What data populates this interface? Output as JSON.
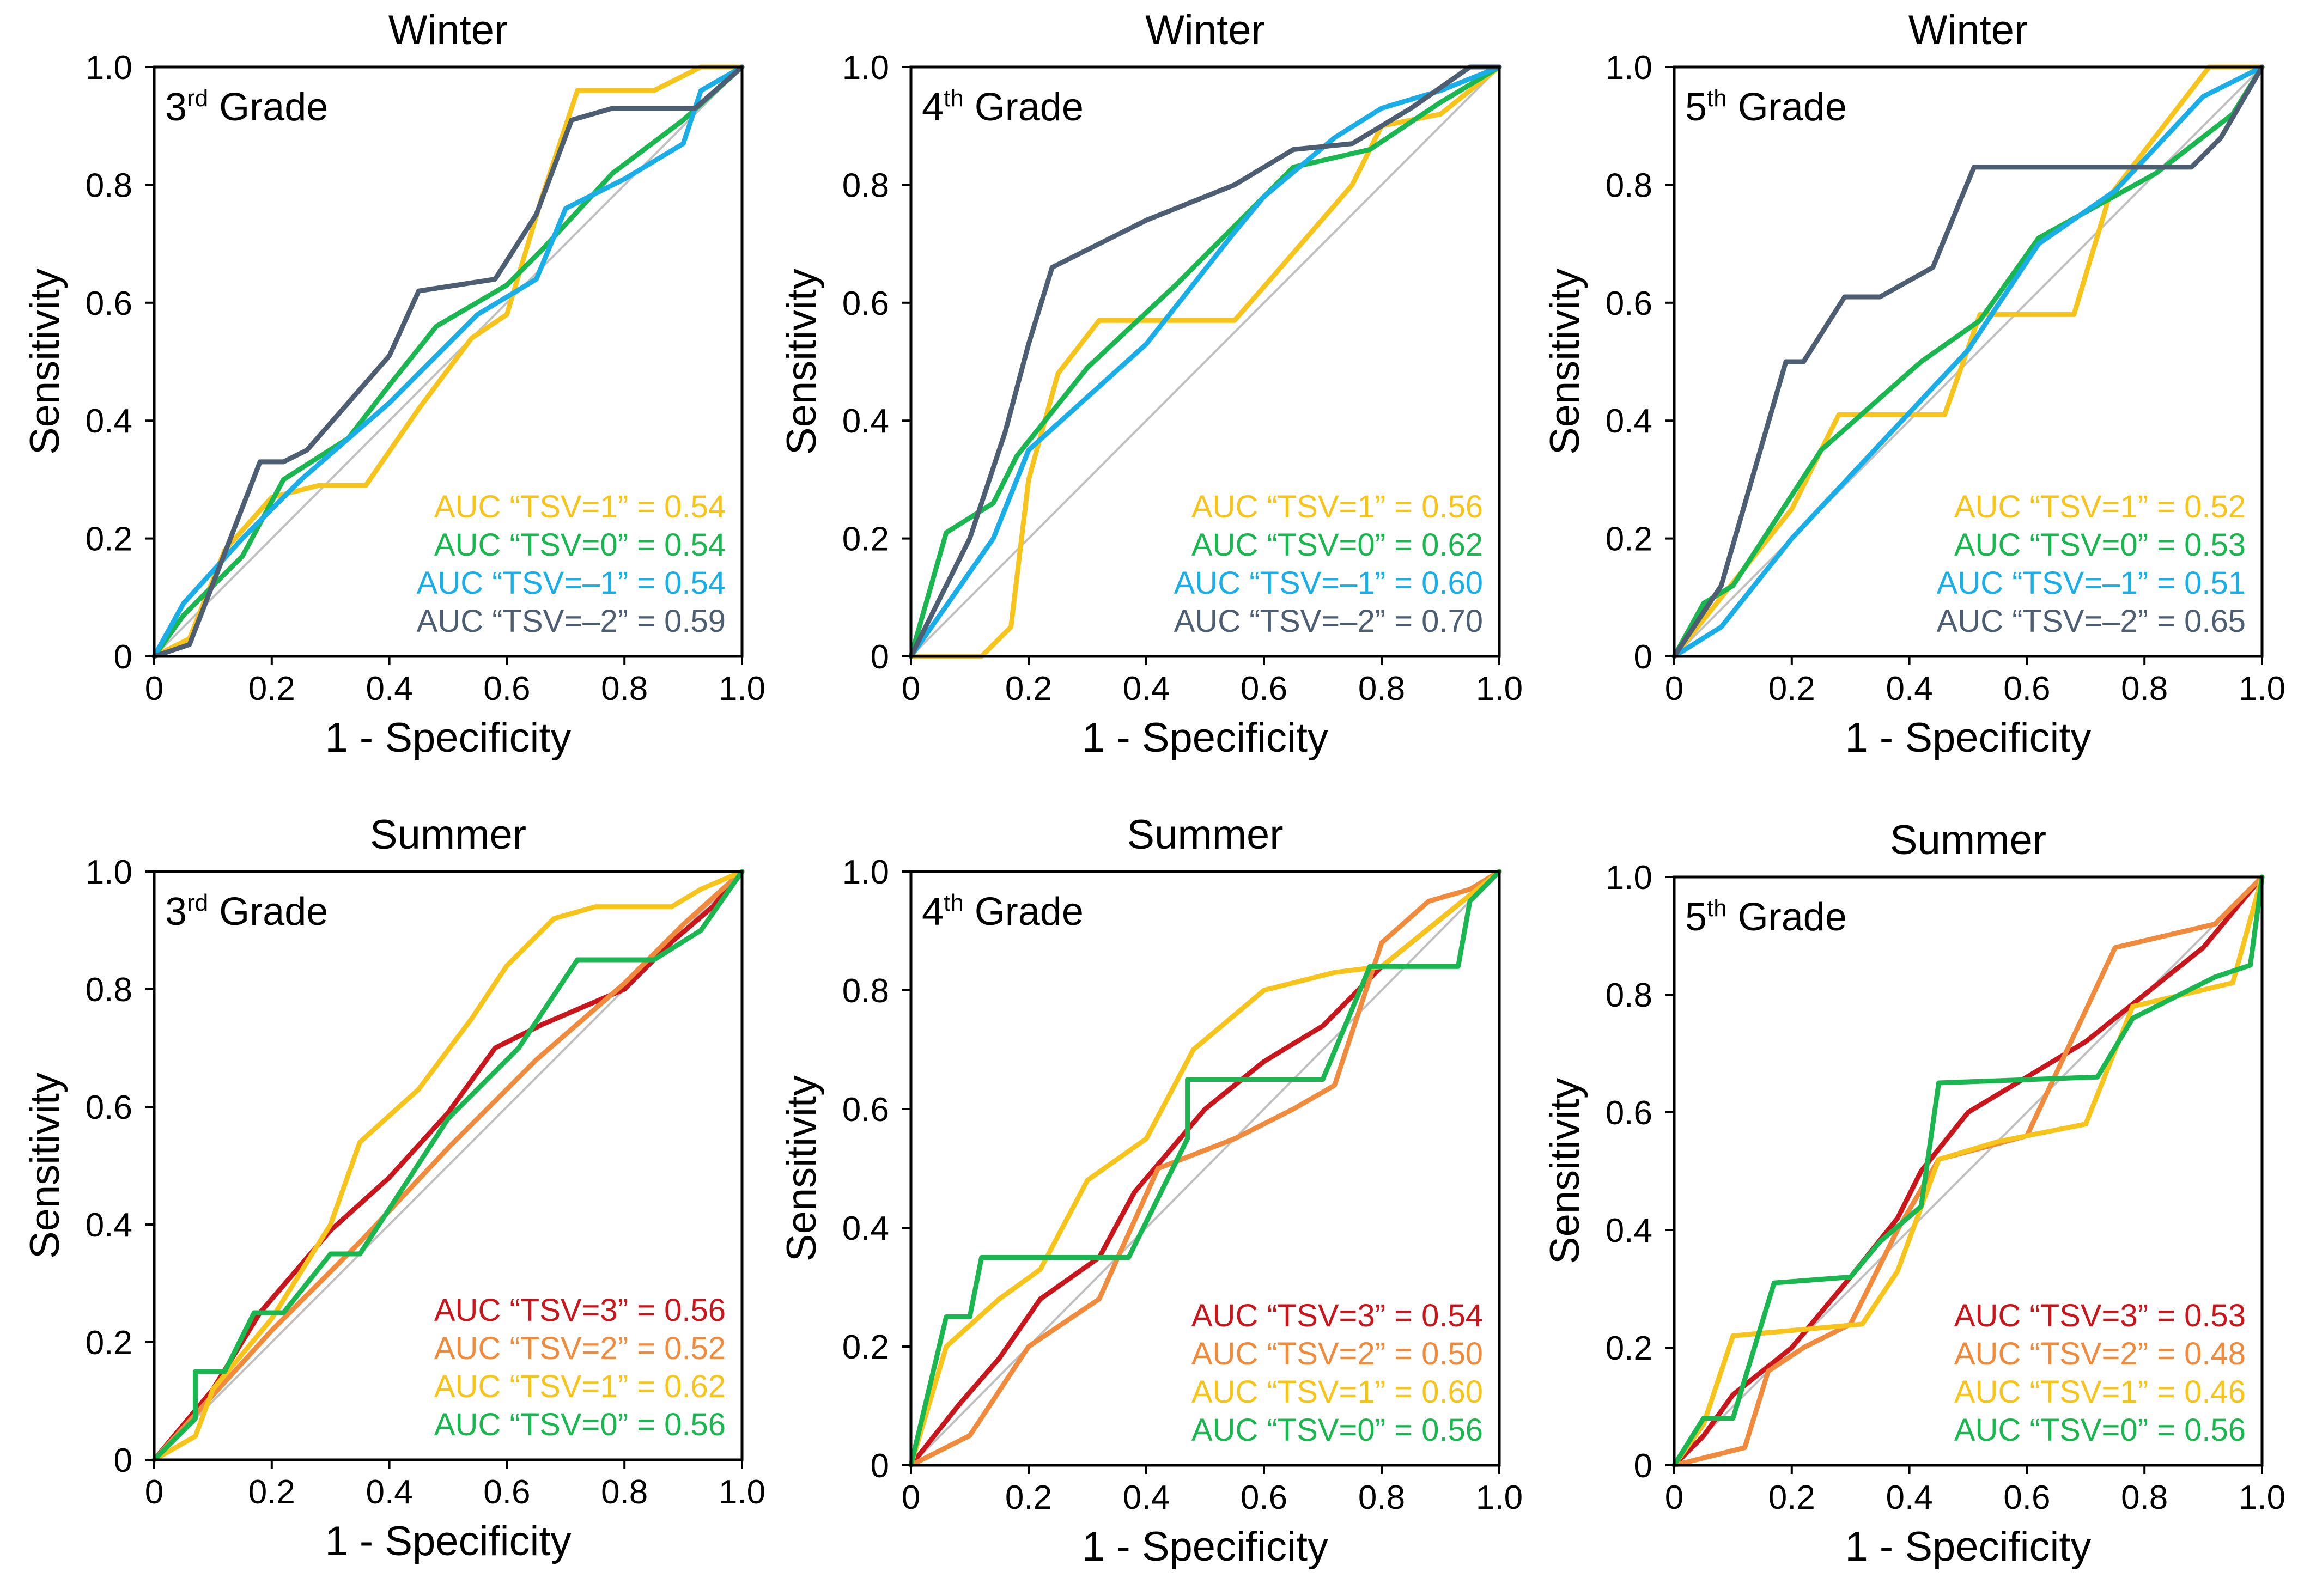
{
  "chart_data": [
    {
      "type": "line",
      "season": "Winter",
      "title": "Winter",
      "grade": "3",
      "grade_suffix": "rd",
      "grade_word": "Grade",
      "xlabel": "1 - Specificity",
      "ylabel": "Sensitivity",
      "xlim": [
        0,
        1
      ],
      "ylim": [
        0,
        1
      ],
      "xticks": [
        "0",
        "0.2",
        "0.4",
        "0.6",
        "0.8",
        "1.0"
      ],
      "yticks": [
        "0",
        "0.2",
        "0.4",
        "0.6",
        "0.8",
        "1.0"
      ],
      "reference_line": {
        "name": "chance",
        "color": "#c0c0c0"
      },
      "series": [
        {
          "name": "TSV=1",
          "color": "#f7c41b",
          "auc_label": "AUC “TSV=1” = 0.54",
          "x": [
            0,
            0.06,
            0.12,
            0.2,
            0.28,
            0.36,
            0.45,
            0.54,
            0.6,
            0.66,
            0.72,
            0.85,
            0.93,
            1.0
          ],
          "y": [
            0,
            0.03,
            0.18,
            0.27,
            0.29,
            0.29,
            0.42,
            0.54,
            0.58,
            0.78,
            0.96,
            0.96,
            1.0,
            1.0
          ]
        },
        {
          "name": "TSV=0",
          "color": "#1ab64f",
          "auc_label": "AUC “TSV=0” = 0.54",
          "x": [
            0,
            0.05,
            0.15,
            0.22,
            0.33,
            0.4,
            0.48,
            0.6,
            0.66,
            0.78,
            0.9,
            1.0
          ],
          "y": [
            0,
            0.07,
            0.17,
            0.3,
            0.37,
            0.46,
            0.56,
            0.63,
            0.69,
            0.82,
            0.91,
            1.0
          ]
        },
        {
          "name": "TSV=-1",
          "color": "#1aaee8",
          "auc_label": "AUC “TSV=–1” = 0.54",
          "x": [
            0,
            0.05,
            0.15,
            0.25,
            0.4,
            0.55,
            0.65,
            0.7,
            0.8,
            0.9,
            0.93,
            1.0
          ],
          "y": [
            0,
            0.09,
            0.2,
            0.3,
            0.43,
            0.58,
            0.64,
            0.76,
            0.81,
            0.87,
            0.96,
            1.0
          ]
        },
        {
          "name": "TSV=-2",
          "color": "#4d5e73",
          "auc_label": "AUC “TSV=–2” = 0.59",
          "x": [
            0,
            0.06,
            0.18,
            0.22,
            0.26,
            0.4,
            0.45,
            0.58,
            0.65,
            0.71,
            0.78,
            0.92,
            1.0
          ],
          "y": [
            0,
            0.02,
            0.33,
            0.33,
            0.35,
            0.51,
            0.62,
            0.64,
            0.75,
            0.91,
            0.93,
            0.93,
            1.0
          ]
        }
      ]
    },
    {
      "type": "line",
      "season": "Winter",
      "title": "Winter",
      "grade": "4",
      "grade_suffix": "th",
      "grade_word": "Grade",
      "xlabel": "1 - Specificity",
      "ylabel": "Sensitivity",
      "xlim": [
        0,
        1
      ],
      "ylim": [
        0,
        1
      ],
      "xticks": [
        "0",
        "0.2",
        "0.4",
        "0.6",
        "0.8",
        "1.0"
      ],
      "yticks": [
        "0",
        "0.2",
        "0.4",
        "0.6",
        "0.8",
        "1.0"
      ],
      "reference_line": {
        "name": "chance",
        "color": "#c0c0c0"
      },
      "series": [
        {
          "name": "TSV=1",
          "color": "#f7c41b",
          "auc_label": "AUC “TSV=1” = 0.56",
          "x": [
            0,
            0.12,
            0.17,
            0.2,
            0.25,
            0.32,
            0.55,
            0.62,
            0.75,
            0.8,
            0.9,
            1.0
          ],
          "y": [
            0,
            0,
            0.05,
            0.3,
            0.48,
            0.57,
            0.57,
            0.65,
            0.8,
            0.9,
            0.92,
            1.0
          ]
        },
        {
          "name": "TSV=0",
          "color": "#1ab64f",
          "auc_label": "AUC “TSV=0” = 0.62",
          "x": [
            0,
            0.06,
            0.14,
            0.18,
            0.3,
            0.45,
            0.65,
            0.78,
            0.9,
            1.0
          ],
          "y": [
            0,
            0.21,
            0.26,
            0.34,
            0.49,
            0.63,
            0.83,
            0.86,
            0.94,
            1.0
          ]
        },
        {
          "name": "TSV=-1",
          "color": "#1aaee8",
          "auc_label": "AUC “TSV=–1” = 0.60",
          "x": [
            0,
            0.14,
            0.2,
            0.4,
            0.55,
            0.6,
            0.72,
            0.8,
            0.9,
            1.0
          ],
          "y": [
            0,
            0.2,
            0.35,
            0.53,
            0.72,
            0.78,
            0.88,
            0.93,
            0.96,
            1.0
          ]
        },
        {
          "name": "TSV=-2",
          "color": "#4d5e73",
          "auc_label": "AUC “TSV=–2” = 0.70",
          "x": [
            0,
            0.1,
            0.16,
            0.2,
            0.24,
            0.4,
            0.55,
            0.65,
            0.75,
            0.85,
            0.95,
            1.0
          ],
          "y": [
            0,
            0.2,
            0.38,
            0.53,
            0.66,
            0.74,
            0.8,
            0.86,
            0.87,
            0.93,
            1.0,
            1.0
          ]
        }
      ]
    },
    {
      "type": "line",
      "season": "Winter",
      "title": "Winter",
      "grade": "5",
      "grade_suffix": "th",
      "grade_word": "Grade",
      "xlabel": "1 - Specificity",
      "ylabel": "Sensitivity",
      "xlim": [
        0,
        1
      ],
      "ylim": [
        0,
        1
      ],
      "xticks": [
        "0",
        "0.2",
        "0.4",
        "0.6",
        "0.8",
        "1.0"
      ],
      "yticks": [
        "0",
        "0.2",
        "0.4",
        "0.6",
        "0.8",
        "1.0"
      ],
      "reference_line": {
        "name": "chance",
        "color": "#c0c0c0"
      },
      "series": [
        {
          "name": "TSV=1",
          "color": "#f7c41b",
          "auc_label": "AUC “TSV=1” = 0.52",
          "x": [
            0,
            0.2,
            0.28,
            0.46,
            0.52,
            0.68,
            0.74,
            0.91,
            1.0
          ],
          "y": [
            0,
            0.25,
            0.41,
            0.41,
            0.58,
            0.58,
            0.78,
            1.0,
            1.0
          ]
        },
        {
          "name": "TSV=0",
          "color": "#1ab64f",
          "auc_label": "AUC “TSV=0” = 0.53",
          "x": [
            0,
            0.05,
            0.1,
            0.25,
            0.42,
            0.52,
            0.62,
            0.82,
            0.95,
            1.0
          ],
          "y": [
            0,
            0.09,
            0.12,
            0.35,
            0.5,
            0.57,
            0.71,
            0.82,
            0.92,
            1.0
          ]
        },
        {
          "name": "TSV=-1",
          "color": "#1aaee8",
          "auc_label": "AUC “TSV=–1” = 0.51",
          "x": [
            0,
            0.08,
            0.2,
            0.35,
            0.5,
            0.62,
            0.75,
            0.9,
            1.0
          ],
          "y": [
            0,
            0.05,
            0.2,
            0.36,
            0.52,
            0.7,
            0.79,
            0.95,
            1.0
          ]
        },
        {
          "name": "TSV=-2",
          "color": "#4d5e73",
          "auc_label": "AUC “TSV=–2” = 0.65",
          "x": [
            0,
            0.08,
            0.19,
            0.22,
            0.29,
            0.35,
            0.44,
            0.51,
            0.88,
            0.93,
            1.0
          ],
          "y": [
            0,
            0.12,
            0.5,
            0.5,
            0.61,
            0.61,
            0.66,
            0.83,
            0.83,
            0.88,
            1.0
          ]
        }
      ]
    },
    {
      "type": "line",
      "season": "Summer",
      "title": "Summer",
      "grade": "3",
      "grade_suffix": "rd",
      "grade_word": "Grade",
      "xlabel": "1 - Specificity",
      "ylabel": "Sensitivity",
      "xlim": [
        0,
        1
      ],
      "ylim": [
        0,
        1
      ],
      "xticks": [
        "0",
        "0.2",
        "0.4",
        "0.6",
        "0.8",
        "1.0"
      ],
      "yticks": [
        "0",
        "0.2",
        "0.4",
        "0.6",
        "0.8",
        "1.0"
      ],
      "reference_line": {
        "name": "chance",
        "color": "#c0c0c0"
      },
      "series": [
        {
          "name": "TSV=3",
          "color": "#c8161c",
          "auc_label": "AUC “TSV=3” = 0.56",
          "x": [
            0,
            0.1,
            0.18,
            0.3,
            0.4,
            0.5,
            0.58,
            0.66,
            0.8,
            0.88,
            0.95,
            1.0
          ],
          "y": [
            0,
            0.12,
            0.25,
            0.39,
            0.48,
            0.59,
            0.7,
            0.74,
            0.8,
            0.88,
            0.94,
            1.0
          ]
        },
        {
          "name": "TSV=2",
          "color": "#f08a3c",
          "auc_label": "AUC “TSV=2” = 0.52",
          "x": [
            0,
            0.1,
            0.2,
            0.35,
            0.5,
            0.65,
            0.8,
            0.9,
            1.0
          ],
          "y": [
            0,
            0.11,
            0.22,
            0.37,
            0.53,
            0.68,
            0.81,
            0.91,
            1.0
          ]
        },
        {
          "name": "TSV=1",
          "color": "#f7c41b",
          "auc_label": "AUC “TSV=1” = 0.62",
          "x": [
            0,
            0.07,
            0.1,
            0.2,
            0.3,
            0.35,
            0.45,
            0.54,
            0.6,
            0.68,
            0.75,
            0.88,
            0.93,
            1.0
          ],
          "y": [
            0,
            0.04,
            0.12,
            0.24,
            0.4,
            0.54,
            0.63,
            0.75,
            0.84,
            0.92,
            0.94,
            0.94,
            0.97,
            1.0
          ]
        },
        {
          "name": "TSV=0",
          "color": "#1ab64f",
          "auc_label": "AUC “TSV=0” = 0.56",
          "x": [
            0,
            0.07,
            0.07,
            0.12,
            0.17,
            0.22,
            0.3,
            0.35,
            0.5,
            0.62,
            0.72,
            0.85,
            0.93,
            1.0
          ],
          "y": [
            0,
            0.07,
            0.15,
            0.15,
            0.25,
            0.25,
            0.35,
            0.35,
            0.58,
            0.7,
            0.85,
            0.85,
            0.9,
            1.0
          ]
        }
      ]
    },
    {
      "type": "line",
      "season": "Summer",
      "title": "Summer",
      "grade": "4",
      "grade_suffix": "th",
      "grade_word": "Grade",
      "xlabel": "1 - Specificity",
      "ylabel": "Sensitivity",
      "xlim": [
        0,
        1
      ],
      "ylim": [
        0,
        1
      ],
      "xticks": [
        "0",
        "0.2",
        "0.4",
        "0.6",
        "0.8",
        "1.0"
      ],
      "yticks": [
        "0",
        "0.2",
        "0.4",
        "0.6",
        "0.8",
        "1.0"
      ],
      "reference_line": {
        "name": "chance",
        "color": "#c0c0c0"
      },
      "series": [
        {
          "name": "TSV=3",
          "color": "#c8161c",
          "auc_label": "AUC “TSV=3” = 0.54",
          "x": [
            0,
            0.08,
            0.15,
            0.22,
            0.32,
            0.38,
            0.5,
            0.6,
            0.7,
            0.8,
            0.9,
            1.0
          ],
          "y": [
            0,
            0.1,
            0.18,
            0.28,
            0.35,
            0.46,
            0.6,
            0.68,
            0.74,
            0.84,
            0.92,
            1.0
          ]
        },
        {
          "name": "TSV=2",
          "color": "#f08a3c",
          "auc_label": "AUC “TSV=2” = 0.50",
          "x": [
            0,
            0.1,
            0.2,
            0.32,
            0.42,
            0.55,
            0.65,
            0.72,
            0.8,
            0.88,
            0.95,
            1.0
          ],
          "y": [
            0,
            0.05,
            0.2,
            0.28,
            0.5,
            0.55,
            0.6,
            0.64,
            0.88,
            0.95,
            0.97,
            1.0
          ]
        },
        {
          "name": "TSV=1",
          "color": "#f7c41b",
          "auc_label": "AUC “TSV=1” = 0.60",
          "x": [
            0,
            0.06,
            0.15,
            0.22,
            0.3,
            0.4,
            0.48,
            0.54,
            0.6,
            0.72,
            0.8,
            0.9,
            1.0
          ],
          "y": [
            0,
            0.2,
            0.28,
            0.33,
            0.48,
            0.55,
            0.7,
            0.75,
            0.8,
            0.83,
            0.84,
            0.92,
            1.0
          ]
        },
        {
          "name": "TSV=0",
          "color": "#1ab64f",
          "auc_label": "AUC “TSV=0” = 0.56",
          "x": [
            0,
            0.06,
            0.06,
            0.1,
            0.12,
            0.37,
            0.47,
            0.47,
            0.7,
            0.78,
            0.93,
            0.95,
            1.0
          ],
          "y": [
            0,
            0.25,
            0.25,
            0.25,
            0.35,
            0.35,
            0.55,
            0.65,
            0.65,
            0.84,
            0.84,
            0.95,
            1.0
          ]
        }
      ]
    },
    {
      "type": "line",
      "season": "Summer",
      "title": "Summer",
      "grade": "5",
      "grade_suffix": "th",
      "grade_word": "Grade",
      "xlabel": "1 - Specificity",
      "ylabel": "Sensitivity",
      "xlim": [
        0,
        1
      ],
      "ylim": [
        0,
        1
      ],
      "xticks": [
        "0",
        "0.2",
        "0.4",
        "0.6",
        "0.8",
        "1.0"
      ],
      "yticks": [
        "0",
        "0.2",
        "0.4",
        "0.6",
        "0.8",
        "1.0"
      ],
      "reference_line": {
        "name": "chance",
        "color": "#c0c0c0"
      },
      "series": [
        {
          "name": "TSV=3",
          "color": "#c8161c",
          "auc_label": "AUC “TSV=3” = 0.53",
          "x": [
            0,
            0.05,
            0.1,
            0.2,
            0.3,
            0.38,
            0.42,
            0.5,
            0.6,
            0.7,
            0.8,
            0.9,
            1.0
          ],
          "y": [
            0,
            0.05,
            0.12,
            0.2,
            0.32,
            0.42,
            0.5,
            0.6,
            0.66,
            0.72,
            0.8,
            0.88,
            1.0
          ]
        },
        {
          "name": "TSV=2",
          "color": "#f08a3c",
          "auc_label": "AUC “TSV=2” = 0.48",
          "x": [
            0,
            0.12,
            0.16,
            0.22,
            0.3,
            0.38,
            0.45,
            0.6,
            0.75,
            0.92,
            1.0
          ],
          "y": [
            0,
            0.03,
            0.16,
            0.2,
            0.24,
            0.4,
            0.52,
            0.56,
            0.88,
            0.92,
            1.0
          ]
        },
        {
          "name": "TSV=1",
          "color": "#f7c41b",
          "auc_label": "AUC “TSV=1” = 0.46",
          "x": [
            0,
            0.05,
            0.1,
            0.32,
            0.38,
            0.45,
            0.55,
            0.7,
            0.78,
            0.95,
            1.0
          ],
          "y": [
            0,
            0.07,
            0.22,
            0.24,
            0.33,
            0.52,
            0.55,
            0.58,
            0.78,
            0.82,
            1.0
          ]
        },
        {
          "name": "TSV=0",
          "color": "#1ab64f",
          "auc_label": "AUC “TSV=0” = 0.56",
          "x": [
            0,
            0.05,
            0.1,
            0.17,
            0.3,
            0.35,
            0.42,
            0.45,
            0.72,
            0.78,
            0.92,
            0.98,
            1.0
          ],
          "y": [
            0,
            0.08,
            0.08,
            0.31,
            0.32,
            0.38,
            0.44,
            0.65,
            0.66,
            0.76,
            0.83,
            0.85,
            1.0
          ]
        }
      ]
    }
  ]
}
